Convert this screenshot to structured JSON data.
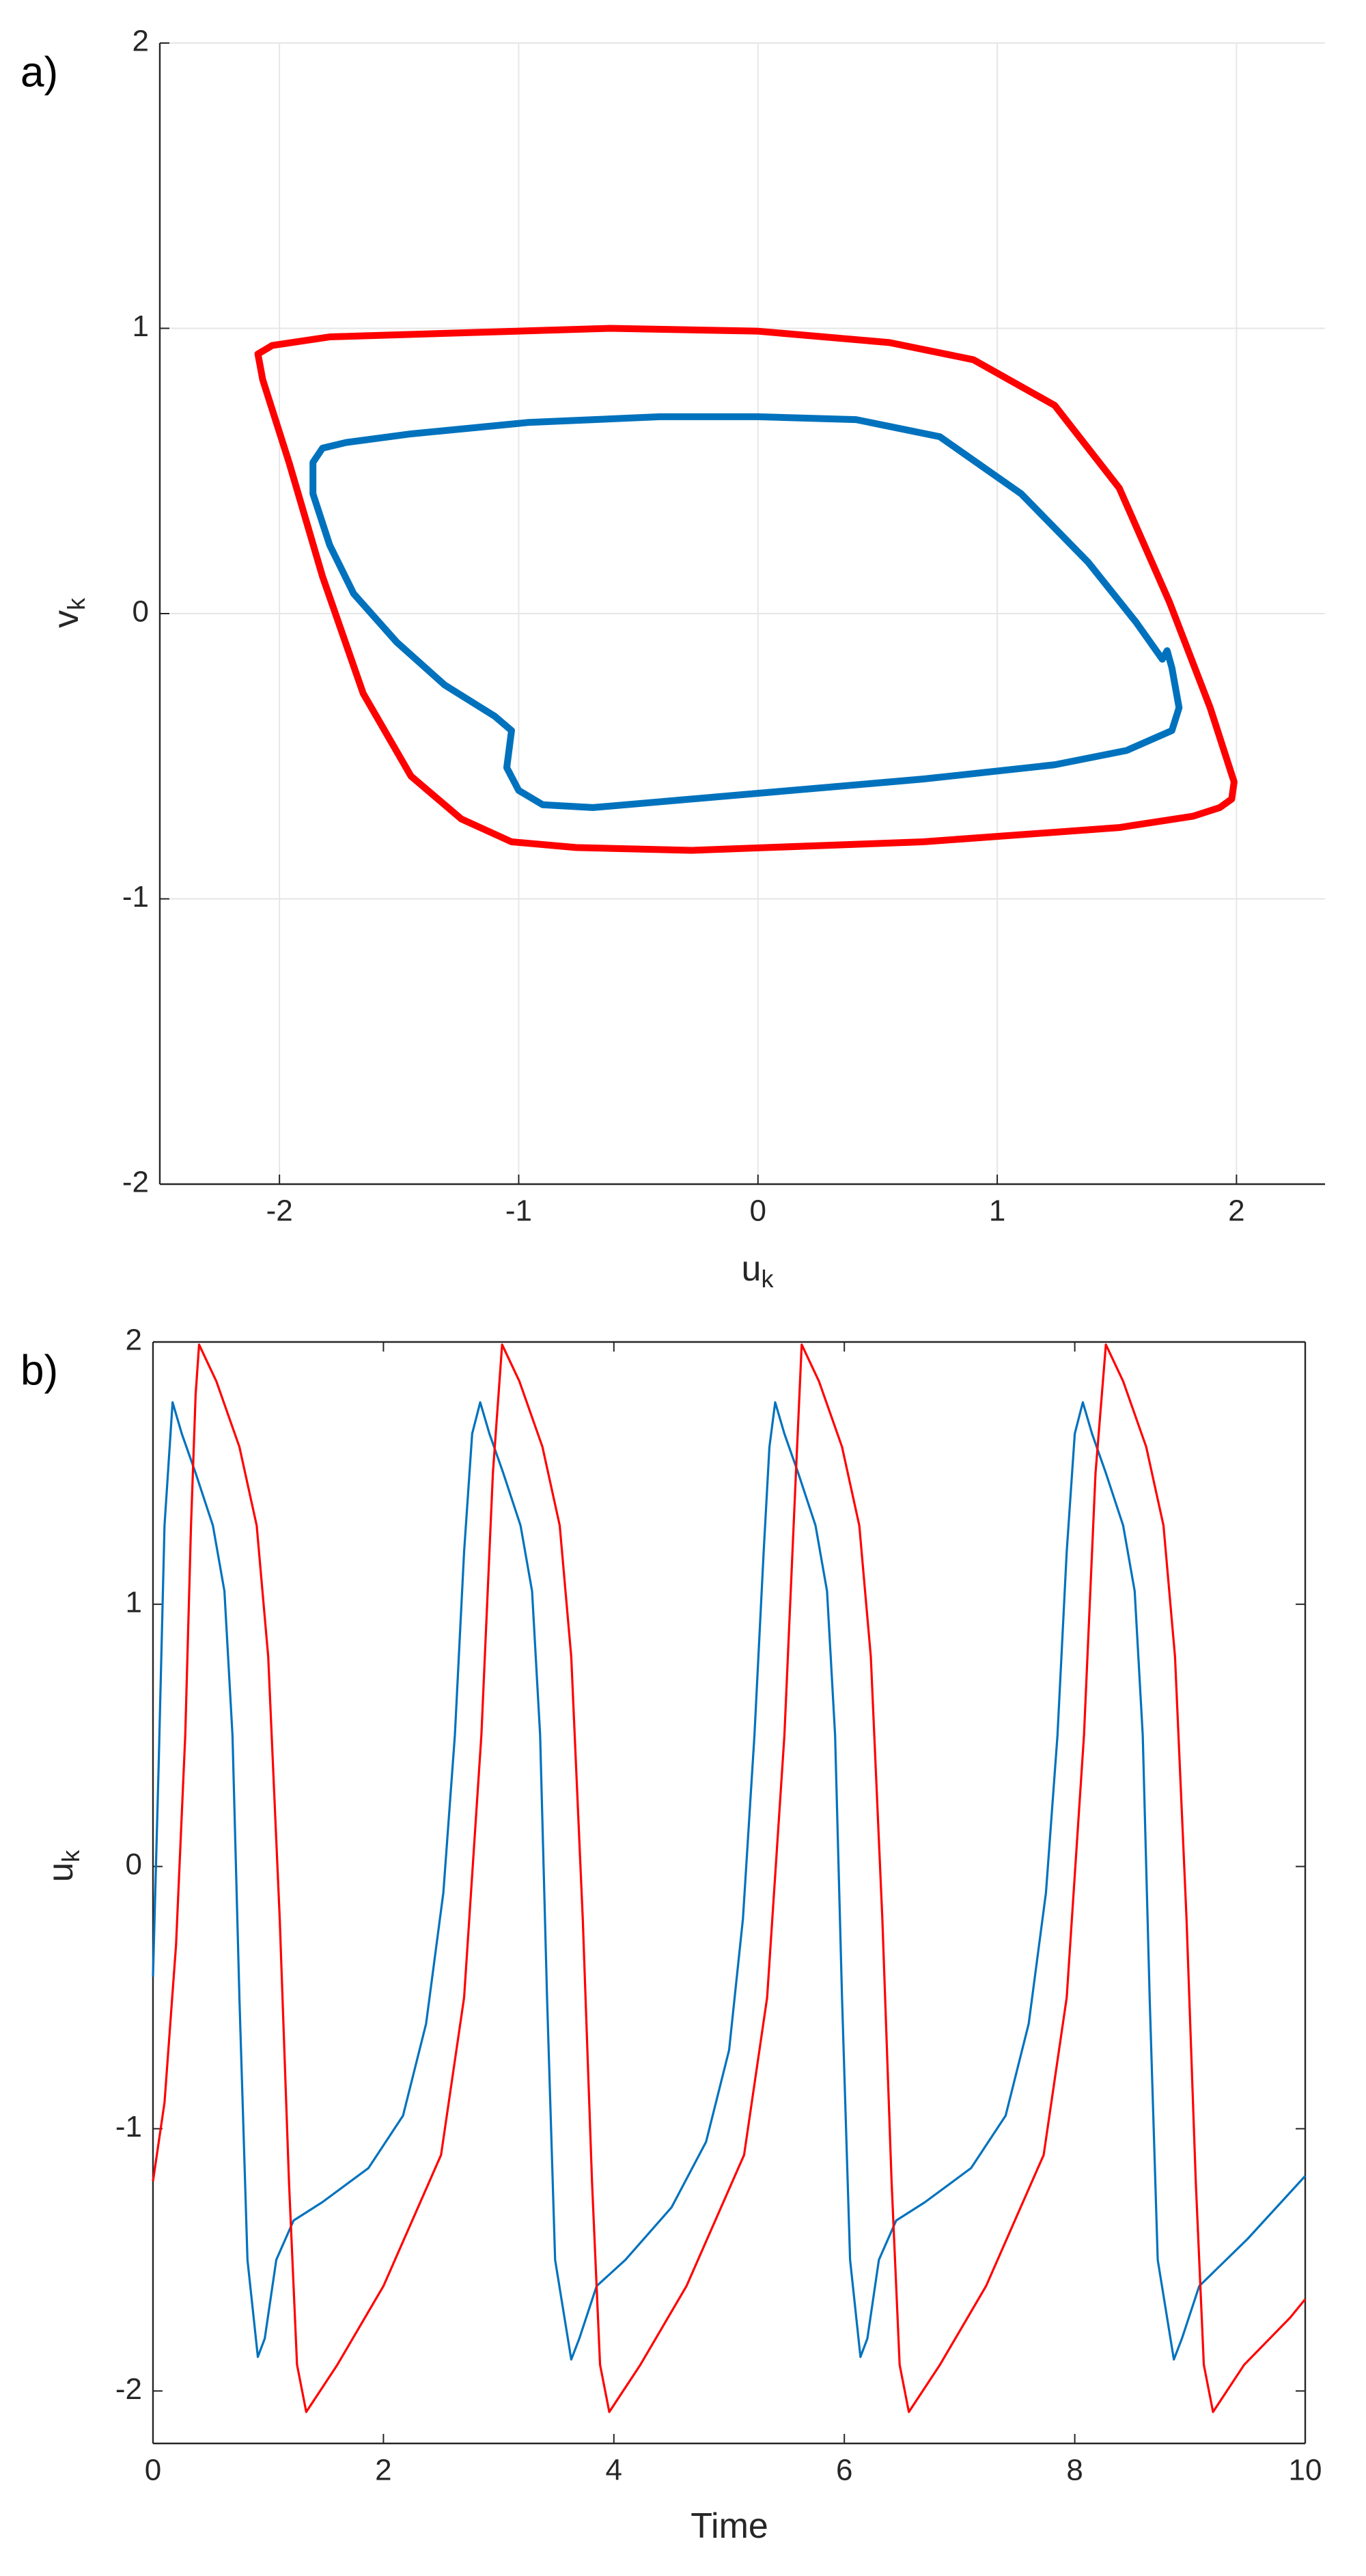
{
  "chart_data": [
    {
      "type": "line",
      "panel_label": "a)",
      "xlabel": {
        "text": "u",
        "subscript": "k"
      },
      "ylabel": {
        "text": "v",
        "subscript": "k"
      },
      "xlim": [
        -2.5,
        2.37
      ],
      "ylim": [
        -2,
        2
      ],
      "xticks": [
        -2,
        -1,
        0,
        1,
        2
      ],
      "yticks": [
        -2,
        -1,
        0,
        1,
        2
      ],
      "grid": true,
      "box": false,
      "closed": true,
      "series": [
        {
          "color": "#ff0000",
          "x": [
            -2.09,
            -2.03,
            -1.79,
            -0.62,
            0,
            0.55,
            0.9,
            1.24,
            1.51,
            1.72,
            1.89,
            1.99,
            1.98,
            1.93,
            1.82,
            1.51,
            0.69,
            -0.28,
            -0.76,
            -1.03,
            -1.24,
            -1.45,
            -1.65,
            -1.82,
            -1.96,
            -2.07
          ],
          "values": [
            0.91,
            0.94,
            0.97,
            1.0,
            0.99,
            0.95,
            0.89,
            0.73,
            0.44,
            0.04,
            -0.33,
            -0.59,
            -0.65,
            -0.68,
            -0.71,
            -0.75,
            -0.8,
            -0.83,
            -0.82,
            -0.8,
            -0.72,
            -0.57,
            -0.28,
            0.13,
            0.53,
            0.82
          ]
        },
        {
          "color": "#0072bd",
          "x": [
            -1.86,
            -1.82,
            -1.72,
            -1.45,
            -0.96,
            -0.41,
            0,
            0.41,
            0.76,
            1.1,
            1.38,
            1.58,
            1.69,
            1.71,
            1.73,
            1.76,
            1.73,
            1.54,
            1.24,
            0.69,
            0,
            -0.69,
            -0.9,
            -1.0,
            -1.05,
            -1.03,
            -1.1,
            -1.31,
            -1.51,
            -1.69,
            -1.79,
            -1.86
          ],
          "values": [
            0.53,
            0.58,
            0.6,
            0.63,
            0.67,
            0.69,
            0.69,
            0.68,
            0.62,
            0.42,
            0.18,
            -0.03,
            -0.16,
            -0.13,
            -0.19,
            -0.33,
            -0.41,
            -0.48,
            -0.53,
            -0.58,
            -0.63,
            -0.68,
            -0.67,
            -0.62,
            -0.54,
            -0.41,
            -0.36,
            -0.25,
            -0.1,
            0.07,
            0.24,
            0.42
          ]
        }
      ]
    },
    {
      "type": "line",
      "panel_label": "b)",
      "xlabel": {
        "text": "Time"
      },
      "ylabel": {
        "text": "u",
        "subscript": "k"
      },
      "xlim": [
        0,
        10
      ],
      "ylim": [
        -2.2,
        2
      ],
      "xticks": [
        0,
        2,
        4,
        6,
        8,
        10
      ],
      "yticks": [
        -2,
        -1,
        0,
        1,
        2
      ],
      "grid": false,
      "box": true,
      "closed": false,
      "series": [
        {
          "color": "#0072bd",
          "x": [
            0,
            0.05,
            0.1,
            0.17,
            0.25,
            0.37,
            0.52,
            0.62,
            0.69,
            0.75,
            0.82,
            0.91,
            0.97,
            1.07,
            1.22,
            1.47,
            1.87,
            2.17,
            2.37,
            2.52,
            2.62,
            2.7,
            2.77,
            2.84,
            2.92,
            3.04,
            3.19,
            3.29,
            3.36,
            3.42,
            3.49,
            3.63,
            3.7,
            3.85,
            4.1,
            4.5,
            4.8,
            5.0,
            5.12,
            5.22,
            5.3,
            5.35,
            5.4,
            5.48,
            5.6,
            5.75,
            5.85,
            5.92,
            5.98,
            6.05,
            6.14,
            6.2,
            6.3,
            6.45,
            6.7,
            7.1,
            7.4,
            7.6,
            7.75,
            7.85,
            7.93,
            8.0,
            8.07,
            8.15,
            8.27,
            8.42,
            8.52,
            8.59,
            8.65,
            8.72,
            8.86,
            8.93,
            9.08,
            9.5,
            10
          ],
          "values": [
            -0.42,
            0.4,
            1.3,
            1.77,
            1.65,
            1.5,
            1.3,
            1.05,
            0.5,
            -0.5,
            -1.5,
            -1.87,
            -1.8,
            -1.5,
            -1.35,
            -1.28,
            -1.15,
            -0.95,
            -0.6,
            -0.1,
            0.5,
            1.2,
            1.65,
            1.77,
            1.65,
            1.5,
            1.3,
            1.05,
            0.5,
            -0.5,
            -1.5,
            -1.88,
            -1.8,
            -1.6,
            -1.5,
            -1.3,
            -1.05,
            -0.7,
            -0.2,
            0.5,
            1.2,
            1.6,
            1.77,
            1.65,
            1.5,
            1.3,
            1.05,
            0.5,
            -0.5,
            -1.5,
            -1.87,
            -1.8,
            -1.5,
            -1.35,
            -1.28,
            -1.15,
            -0.95,
            -0.6,
            -0.1,
            0.5,
            1.2,
            1.65,
            1.77,
            1.65,
            1.5,
            1.3,
            1.05,
            0.5,
            -0.5,
            -1.5,
            -1.88,
            -1.8,
            -1.6,
            -1.42,
            -1.18
          ]
        },
        {
          "color": "#ff0000",
          "x": [
            0,
            0.1,
            0.2,
            0.28,
            0.33,
            0.37,
            0.4,
            0.55,
            0.75,
            0.9,
            1.0,
            1.1,
            1.18,
            1.25,
            1.33,
            1.6,
            2.0,
            2.5,
            2.7,
            2.85,
            2.95,
            3.03,
            3.18,
            3.38,
            3.53,
            3.63,
            3.73,
            3.81,
            3.88,
            3.96,
            4.23,
            4.63,
            5.13,
            5.33,
            5.48,
            5.58,
            5.63,
            5.78,
            5.98,
            6.13,
            6.23,
            6.33,
            6.41,
            6.48,
            6.56,
            6.83,
            7.23,
            7.73,
            7.93,
            8.08,
            8.18,
            8.27,
            8.42,
            8.62,
            8.77,
            8.87,
            8.97,
            9.05,
            9.12,
            9.2,
            9.47,
            9.87,
            10
          ],
          "values": [
            -1.2,
            -0.9,
            -0.3,
            0.5,
            1.3,
            1.8,
            1.99,
            1.85,
            1.6,
            1.3,
            0.8,
            -0.2,
            -1.2,
            -1.9,
            -2.08,
            -1.9,
            -1.6,
            -1.1,
            -0.5,
            0.5,
            1.5,
            1.99,
            1.85,
            1.6,
            1.3,
            0.8,
            -0.2,
            -1.2,
            -1.9,
            -2.08,
            -1.9,
            -1.6,
            -1.1,
            -0.5,
            0.5,
            1.5,
            1.99,
            1.85,
            1.6,
            1.3,
            0.8,
            -0.2,
            -1.2,
            -1.9,
            -2.08,
            -1.9,
            -1.6,
            -1.1,
            -0.5,
            0.5,
            1.5,
            1.99,
            1.85,
            1.6,
            1.3,
            0.8,
            -0.2,
            -1.2,
            -1.9,
            -2.08,
            -1.9,
            -1.72,
            -1.65
          ]
        }
      ]
    }
  ]
}
